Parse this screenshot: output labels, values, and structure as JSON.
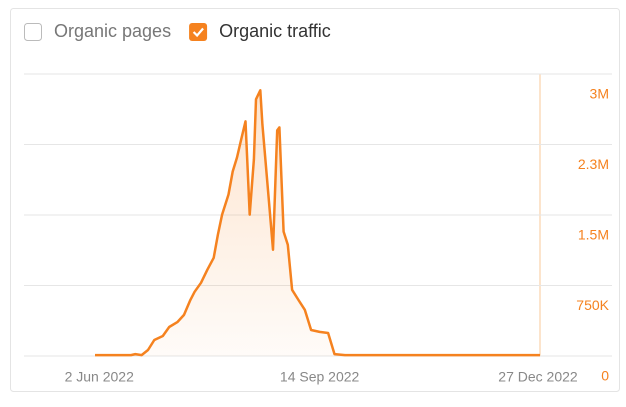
{
  "chart_data": {
    "type": "line",
    "legend": [
      {
        "label": "Organic pages",
        "checked": false
      },
      {
        "label": "Organic traffic",
        "checked": true
      }
    ],
    "x": [
      "2022-05-31",
      "2022-06-17",
      "2022-06-19",
      "2022-06-22",
      "2022-06-25",
      "2022-06-28",
      "2022-07-02",
      "2022-07-05",
      "2022-07-09",
      "2022-07-12",
      "2022-07-15",
      "2022-07-17",
      "2022-07-20",
      "2022-07-23",
      "2022-07-26",
      "2022-07-28",
      "2022-07-30",
      "2022-08-02",
      "2022-08-04",
      "2022-08-06",
      "2022-08-08",
      "2022-08-10",
      "2022-08-12",
      "2022-08-14",
      "2022-08-15",
      "2022-08-17",
      "2022-08-18",
      "2022-08-21",
      "2022-08-23",
      "2022-08-25",
      "2022-08-26",
      "2022-08-28",
      "2022-08-30",
      "2022-09-01",
      "2022-09-04",
      "2022-09-07",
      "2022-09-10",
      "2022-09-14",
      "2022-09-18",
      "2022-09-21",
      "2022-09-26",
      "2022-12-27"
    ],
    "series": [
      {
        "name": "Organic traffic",
        "color": "#f5821f",
        "values": [
          10000,
          10000,
          20000,
          10000,
          64000,
          170000,
          213000,
          309000,
          363000,
          437000,
          597000,
          683000,
          779000,
          917000,
          1045000,
          1291000,
          1504000,
          1718000,
          1963000,
          2112000,
          2304000,
          2496000,
          1504000,
          2091000,
          2731000,
          2827000,
          2464000,
          1664000,
          1131000,
          2400000,
          2432000,
          1323000,
          1184000,
          704000,
          597000,
          491000,
          277000,
          256000,
          245000,
          20000,
          10000,
          10000
        ]
      }
    ],
    "xlim": [
      "2022-05-31",
      "2022-12-27"
    ],
    "xticks": [
      {
        "value": "2022-06-02",
        "label": "2 Jun 2022"
      },
      {
        "value": "2022-09-14",
        "label": "14 Sep 2022"
      },
      {
        "value": "2022-12-27",
        "label": "27 Dec 2022"
      }
    ],
    "ylim": [
      0,
      3000000
    ],
    "yticks": [
      {
        "value": 0,
        "label": "0"
      },
      {
        "value": 750000,
        "label": "750K"
      },
      {
        "value": 1500000,
        "label": "1.5M"
      },
      {
        "value": 2250000,
        "label": "2.3M"
      },
      {
        "value": 3000000,
        "label": "3M"
      }
    ],
    "grid": true
  }
}
